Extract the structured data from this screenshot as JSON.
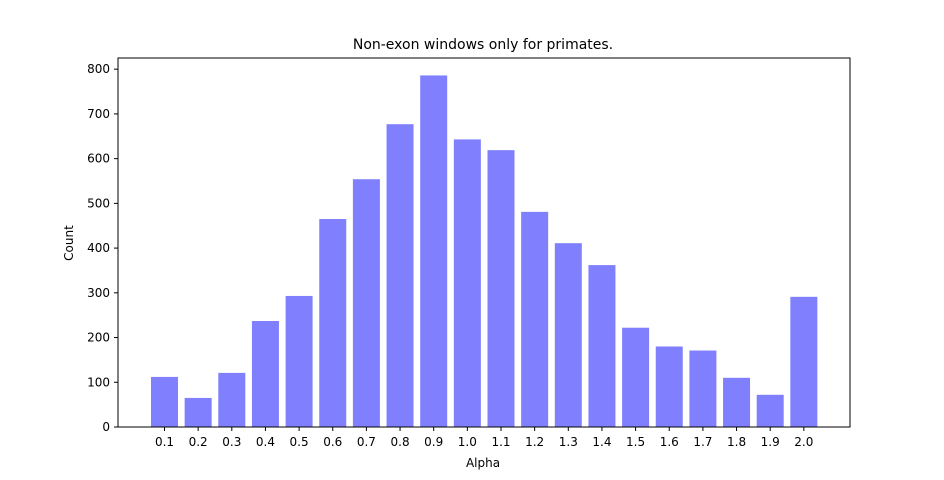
{
  "chart_data": {
    "type": "bar",
    "title": "Non-exon windows only for primates.",
    "xlabel": "Alpha",
    "ylabel": "Count",
    "categories": [
      "0.1",
      "0.2",
      "0.3",
      "0.4",
      "0.5",
      "0.6",
      "0.7",
      "0.8",
      "0.9",
      "1.0",
      "1.1",
      "1.2",
      "1.3",
      "1.4",
      "1.5",
      "1.6",
      "1.7",
      "1.8",
      "1.9",
      "2.0"
    ],
    "values": [
      112,
      65,
      121,
      237,
      293,
      465,
      554,
      677,
      786,
      643,
      619,
      481,
      411,
      362,
      222,
      180,
      171,
      110,
      72,
      291
    ],
    "ylim": [
      0,
      825
    ],
    "yticks": [
      0,
      100,
      200,
      300,
      400,
      500,
      600,
      700,
      800
    ],
    "bar_color": "#8080ff",
    "grid": false,
    "legend": false
  }
}
